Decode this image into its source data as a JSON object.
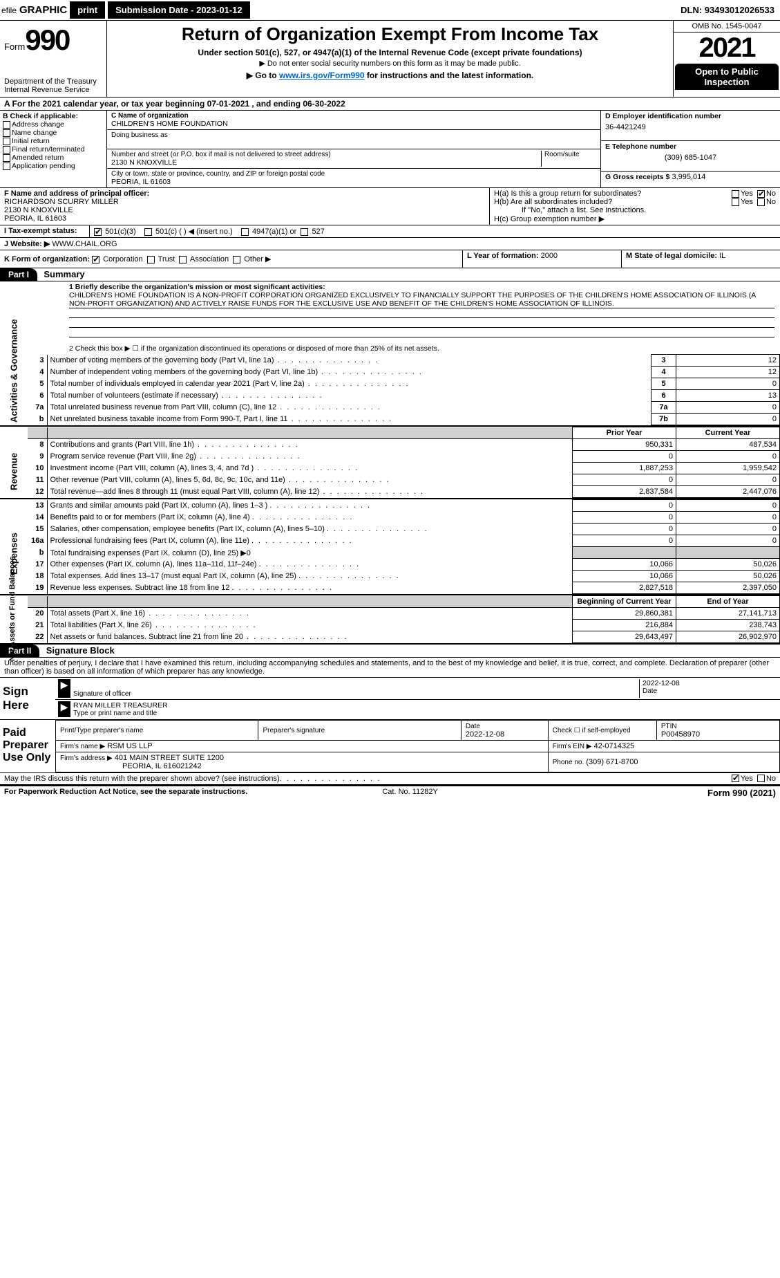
{
  "topbar": {
    "efile_label": "efile",
    "graphic": "GRAPHIC",
    "print": "print",
    "submission_label": "Submission Date - 2023-01-12",
    "dln": "DLN: 93493012026533"
  },
  "header": {
    "form_word": "Form",
    "form_num": "990",
    "dept": "Department of the Treasury",
    "irs": "Internal Revenue Service",
    "title": "Return of Organization Exempt From Income Tax",
    "sub": "Under section 501(c), 527, or 4947(a)(1) of the Internal Revenue Code (except private foundations)",
    "sub2": "▶ Do not enter social security numbers on this form as it may be made public.",
    "sub3_pre": "▶ Go to ",
    "sub3_link": "www.irs.gov/Form990",
    "sub3_post": " for instructions and the latest information.",
    "omb": "OMB No. 1545-0047",
    "year": "2021",
    "open": "Open to Public Inspection"
  },
  "a_line": "A For the 2021 calendar year, or tax year beginning 07-01-2021    , and ending 06-30-2022",
  "b": {
    "hdr": "B Check if applicable:",
    "items": [
      "Address change",
      "Name change",
      "Initial return",
      "Final return/terminated",
      "Amended return",
      "Application pending"
    ]
  },
  "c": {
    "name_lbl": "C Name of organization",
    "name": "CHILDREN'S HOME FOUNDATION",
    "dba_lbl": "Doing business as",
    "dba": "",
    "addr_lbl": "Number and street (or P.O. box if mail is not delivered to street address)",
    "room_lbl": "Room/suite",
    "addr": "2130 N KNOXVILLE",
    "city_lbl": "City or town, state or province, country, and ZIP or foreign postal code",
    "city": "PEORIA, IL  61603"
  },
  "d": {
    "lbl": "D Employer identification number",
    "val": "36-4421249"
  },
  "e": {
    "lbl": "E Telephone number",
    "val": "(309) 685-1047"
  },
  "g": {
    "lbl": "G Gross receipts $",
    "val": "3,995,014"
  },
  "f": {
    "lbl": "F Name and address of principal officer:",
    "name": "RICHARDSON SCURRY MILLER",
    "addr1": "2130 N KNOXVILLE",
    "addr2": "PEORIA, IL 61603"
  },
  "h": {
    "a_lbl": "H(a)  Is this a group return for subordinates?",
    "a_yes": "Yes",
    "a_no": "No",
    "b_lbl": "H(b)  Are all subordinates included?",
    "b_yes": "Yes",
    "b_no": "No",
    "b_note": "If \"No,\" attach a list. See instructions.",
    "c_lbl": "H(c)  Group exemption number ▶"
  },
  "i": {
    "lbl": "I   Tax-exempt status:",
    "opt1": "501(c)(3)",
    "opt2": "501(c) (  ) ◀ (insert no.)",
    "opt3": "4947(a)(1) or",
    "opt4": "527"
  },
  "j": {
    "lbl": "J   Website: ▶",
    "val": " WWW.CHAIL.ORG"
  },
  "k": {
    "lbl": "K Form of organization:",
    "opts": [
      "Corporation",
      "Trust",
      "Association",
      "Other ▶"
    ],
    "l_lbl": "L Year of formation:",
    "l_val": "2000",
    "m_lbl": "M State of legal domicile:",
    "m_val": "IL"
  },
  "part1": {
    "hdr": "Part I",
    "title": "Summary",
    "q1_lbl": "1  Briefly describe the organization's mission or most significant activities:",
    "q1_text": "CHILDREN'S HOME FOUNDATION IS A NON-PROFIT CORPORATION ORGANIZED EXCLUSIVELY TO FINANCIALLY SUPPORT THE PURPOSES OF THE CHILDREN'S HOME ASSOCIATION OF ILLINOIS (A NON-PROFIT ORGANIZATION) AND ACTIVELY RAISE FUNDS FOR THE EXCLUSIVE USE AND BENEFIT OF THE CHILDREN'S HOME ASSOCIATION OF ILLINOIS.",
    "q2": "2   Check this box ▶ ☐  if the organization discontinued its operations or disposed of more than 25% of its net assets."
  },
  "gov_lines": [
    {
      "n": "3",
      "t": "Number of voting members of the governing body (Part VI, line 1a)",
      "box": "3",
      "v": "12"
    },
    {
      "n": "4",
      "t": "Number of independent voting members of the governing body (Part VI, line 1b)",
      "box": "4",
      "v": "12"
    },
    {
      "n": "5",
      "t": "Total number of individuals employed in calendar year 2021 (Part V, line 2a)",
      "box": "5",
      "v": "0"
    },
    {
      "n": "6",
      "t": "Total number of volunteers (estimate if necessary)",
      "box": "6",
      "v": "13"
    },
    {
      "n": "7a",
      "t": "Total unrelated business revenue from Part VIII, column (C), line 12",
      "box": "7a",
      "v": "0"
    },
    {
      "n": "b",
      "t": "Net unrelated business taxable income from Form 990-T, Part I, line 11",
      "box": "7b",
      "v": "0"
    }
  ],
  "two_col_hdr": {
    "prior": "Prior Year",
    "current": "Current Year"
  },
  "revenue": [
    {
      "n": "8",
      "t": "Contributions and grants (Part VIII, line 1h)",
      "p": "950,331",
      "c": "487,534"
    },
    {
      "n": "9",
      "t": "Program service revenue (Part VIII, line 2g)",
      "p": "0",
      "c": "0"
    },
    {
      "n": "10",
      "t": "Investment income (Part VIII, column (A), lines 3, 4, and 7d )",
      "p": "1,887,253",
      "c": "1,959,542"
    },
    {
      "n": "11",
      "t": "Other revenue (Part VIII, column (A), lines 5, 6d, 8c, 9c, 10c, and 11e)",
      "p": "0",
      "c": "0"
    },
    {
      "n": "12",
      "t": "Total revenue—add lines 8 through 11 (must equal Part VIII, column (A), line 12)",
      "p": "2,837,584",
      "c": "2,447,076"
    }
  ],
  "expenses": [
    {
      "n": "13",
      "t": "Grants and similar amounts paid (Part IX, column (A), lines 1–3 )",
      "p": "0",
      "c": "0"
    },
    {
      "n": "14",
      "t": "Benefits paid to or for members (Part IX, column (A), line 4)",
      "p": "0",
      "c": "0"
    },
    {
      "n": "15",
      "t": "Salaries, other compensation, employee benefits (Part IX, column (A), lines 5–10)",
      "p": "0",
      "c": "0"
    },
    {
      "n": "16a",
      "t": "Professional fundraising fees (Part IX, column (A), line 11e)",
      "p": "0",
      "c": "0"
    },
    {
      "n": "b",
      "t": "Total fundraising expenses (Part IX, column (D), line 25) ▶0",
      "p": "",
      "c": "",
      "gray": true
    },
    {
      "n": "17",
      "t": "Other expenses (Part IX, column (A), lines 11a–11d, 11f–24e)",
      "p": "10,066",
      "c": "50,026"
    },
    {
      "n": "18",
      "t": "Total expenses. Add lines 13–17 (must equal Part IX, column (A), line 25)",
      "p": "10,066",
      "c": "50,026"
    },
    {
      "n": "19",
      "t": "Revenue less expenses. Subtract line 18 from line 12",
      "p": "2,827,518",
      "c": "2,397,050"
    }
  ],
  "net_hdr": {
    "beg": "Beginning of Current Year",
    "end": "End of Year"
  },
  "net": [
    {
      "n": "20",
      "t": "Total assets (Part X, line 16)",
      "p": "29,860,381",
      "c": "27,141,713"
    },
    {
      "n": "21",
      "t": "Total liabilities (Part X, line 26)",
      "p": "216,884",
      "c": "238,743"
    },
    {
      "n": "22",
      "t": "Net assets or fund balances. Subtract line 21 from line 20",
      "p": "29,643,497",
      "c": "26,902,970"
    }
  ],
  "vtabs": {
    "gov": "Activities & Governance",
    "rev": "Revenue",
    "exp": "Expenses",
    "net": "Net Assets or Fund Balances"
  },
  "part2": {
    "hdr": "Part II",
    "title": "Signature Block",
    "decl": "Under penalties of perjury, I declare that I have examined this return, including accompanying schedules and statements, and to the best of my knowledge and belief, it is true, correct, and complete. Declaration of preparer (other than officer) is based on all information of which preparer has any knowledge."
  },
  "sign": {
    "lbl": "Sign Here",
    "sig_lbl": "Signature of officer",
    "date": "2022-12-08",
    "date_lbl": "Date",
    "name": "RYAN MILLER TREASURER",
    "name_lbl": "Type or print name and title"
  },
  "paid": {
    "lbl": "Paid Preparer Use Only",
    "h1": "Print/Type preparer's name",
    "h2": "Preparer's signature",
    "h3": "Date",
    "h4": "Check ☐ if self-employed",
    "h5": "PTIN",
    "date": "2022-12-08",
    "ptin": "P00458970",
    "firm_lbl": "Firm's name    ▶",
    "firm": "RSM US LLP",
    "ein_lbl": "Firm's EIN ▶",
    "ein": "42-0714325",
    "addr_lbl": "Firm's address ▶",
    "addr1": "401 MAIN STREET SUITE 1200",
    "addr2": "PEORIA, IL  616021242",
    "phone_lbl": "Phone no.",
    "phone": "(309) 671-8700"
  },
  "may_discuss": "May the IRS discuss this return with the preparer shown above? (see instructions)",
  "yes": "Yes",
  "no": "No",
  "footer": {
    "l": "For Paperwork Reduction Act Notice, see the separate instructions.",
    "m": "Cat. No. 11282Y",
    "r": "Form 990 (2021)"
  }
}
